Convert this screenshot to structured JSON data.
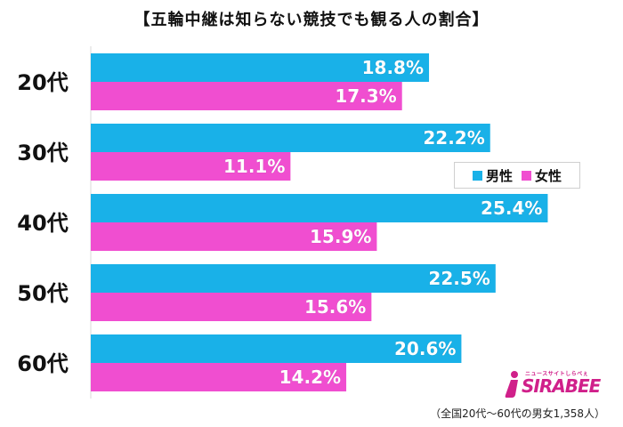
{
  "chart_data": {
    "type": "bar",
    "orientation": "horizontal",
    "title": "【五輪中継は知らない競技でも観る人の割合】",
    "categories": [
      "20代",
      "30代",
      "40代",
      "50代",
      "60代"
    ],
    "series": [
      {
        "name": "男性",
        "color": "#19b1e8",
        "values": [
          18.8,
          22.2,
          25.4,
          22.5,
          20.6
        ],
        "labels": [
          "18.8%",
          "22.2%",
          "25.4%",
          "22.5%",
          "20.6%"
        ]
      },
      {
        "name": "女性",
        "color": "#f04ed0",
        "values": [
          17.3,
          11.1,
          15.9,
          15.6,
          14.2
        ],
        "labels": [
          "17.3%",
          "11.1%",
          "15.9%",
          "15.6%",
          "14.2%"
        ]
      }
    ],
    "xlim": [
      0,
      28
    ],
    "legend_position": "right",
    "footnote": "（全国20代〜60代の男女1,358人）"
  },
  "logo": {
    "text": "SIRABEE",
    "subtext": "ニュースサイトしらべぇ",
    "color": "#d0208a"
  }
}
